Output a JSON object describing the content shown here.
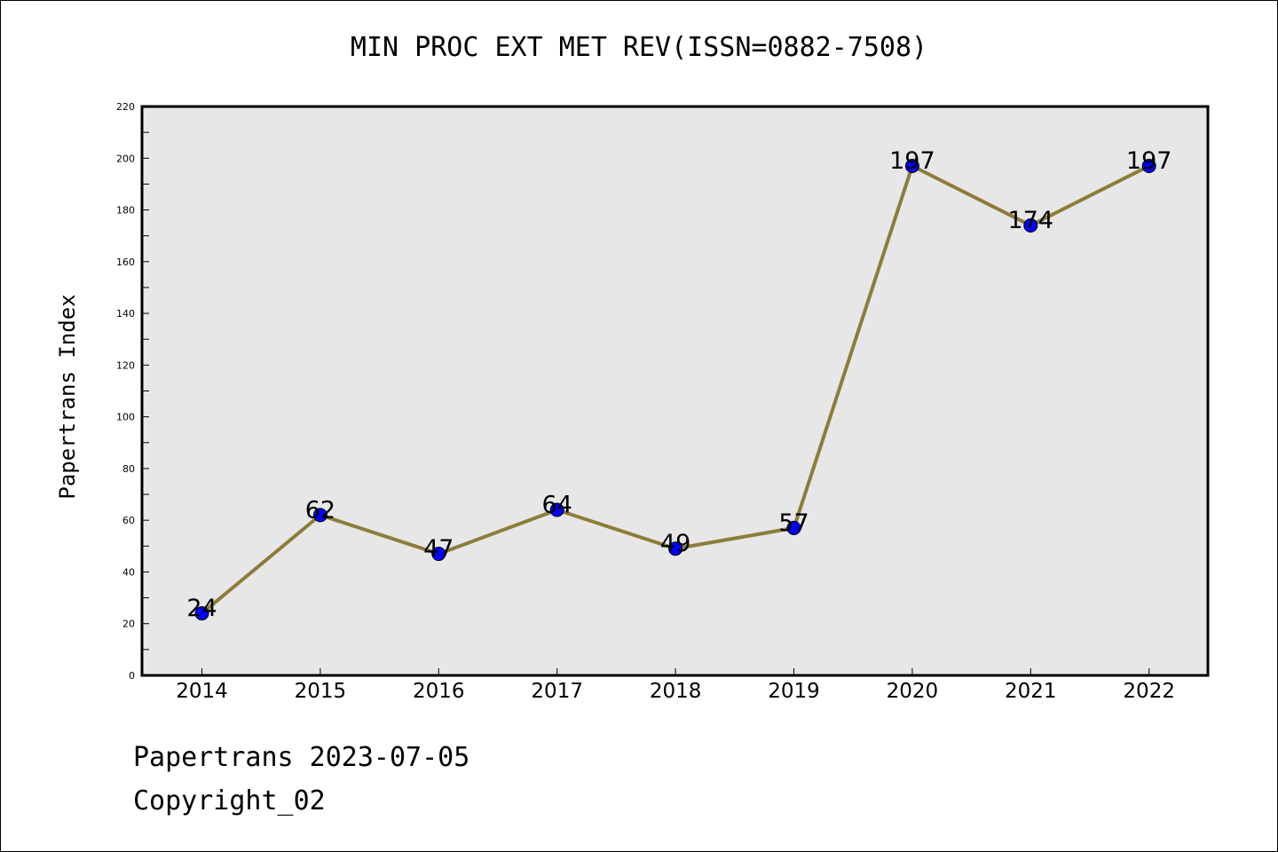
{
  "chart_data": {
    "type": "line",
    "title": "MIN PROC EXT MET REV(ISSN=0882-7508)",
    "xlabel": "",
    "ylabel": "Papertrans Index",
    "categories": [
      "2014",
      "2015",
      "2016",
      "2017",
      "2018",
      "2019",
      "2020",
      "2021",
      "2022"
    ],
    "values": [
      24,
      62,
      47,
      64,
      49,
      57,
      197,
      174,
      197
    ],
    "data_labels": [
      "24",
      "62",
      "47",
      "64",
      "49",
      "57",
      "197",
      "174",
      "197"
    ],
    "ylim": [
      0,
      220
    ],
    "y_ticks": [
      0,
      20,
      40,
      60,
      80,
      100,
      120,
      140,
      160,
      180,
      200,
      220
    ],
    "grid": false,
    "legend": "none",
    "colors": {
      "line": "#8B7D3A",
      "marker": "#0000FF",
      "plot_background": "#E7E7E7"
    }
  },
  "footer": {
    "date_text": "Papertrans 2023-07-05",
    "copyright_text": "Copyright_02"
  }
}
